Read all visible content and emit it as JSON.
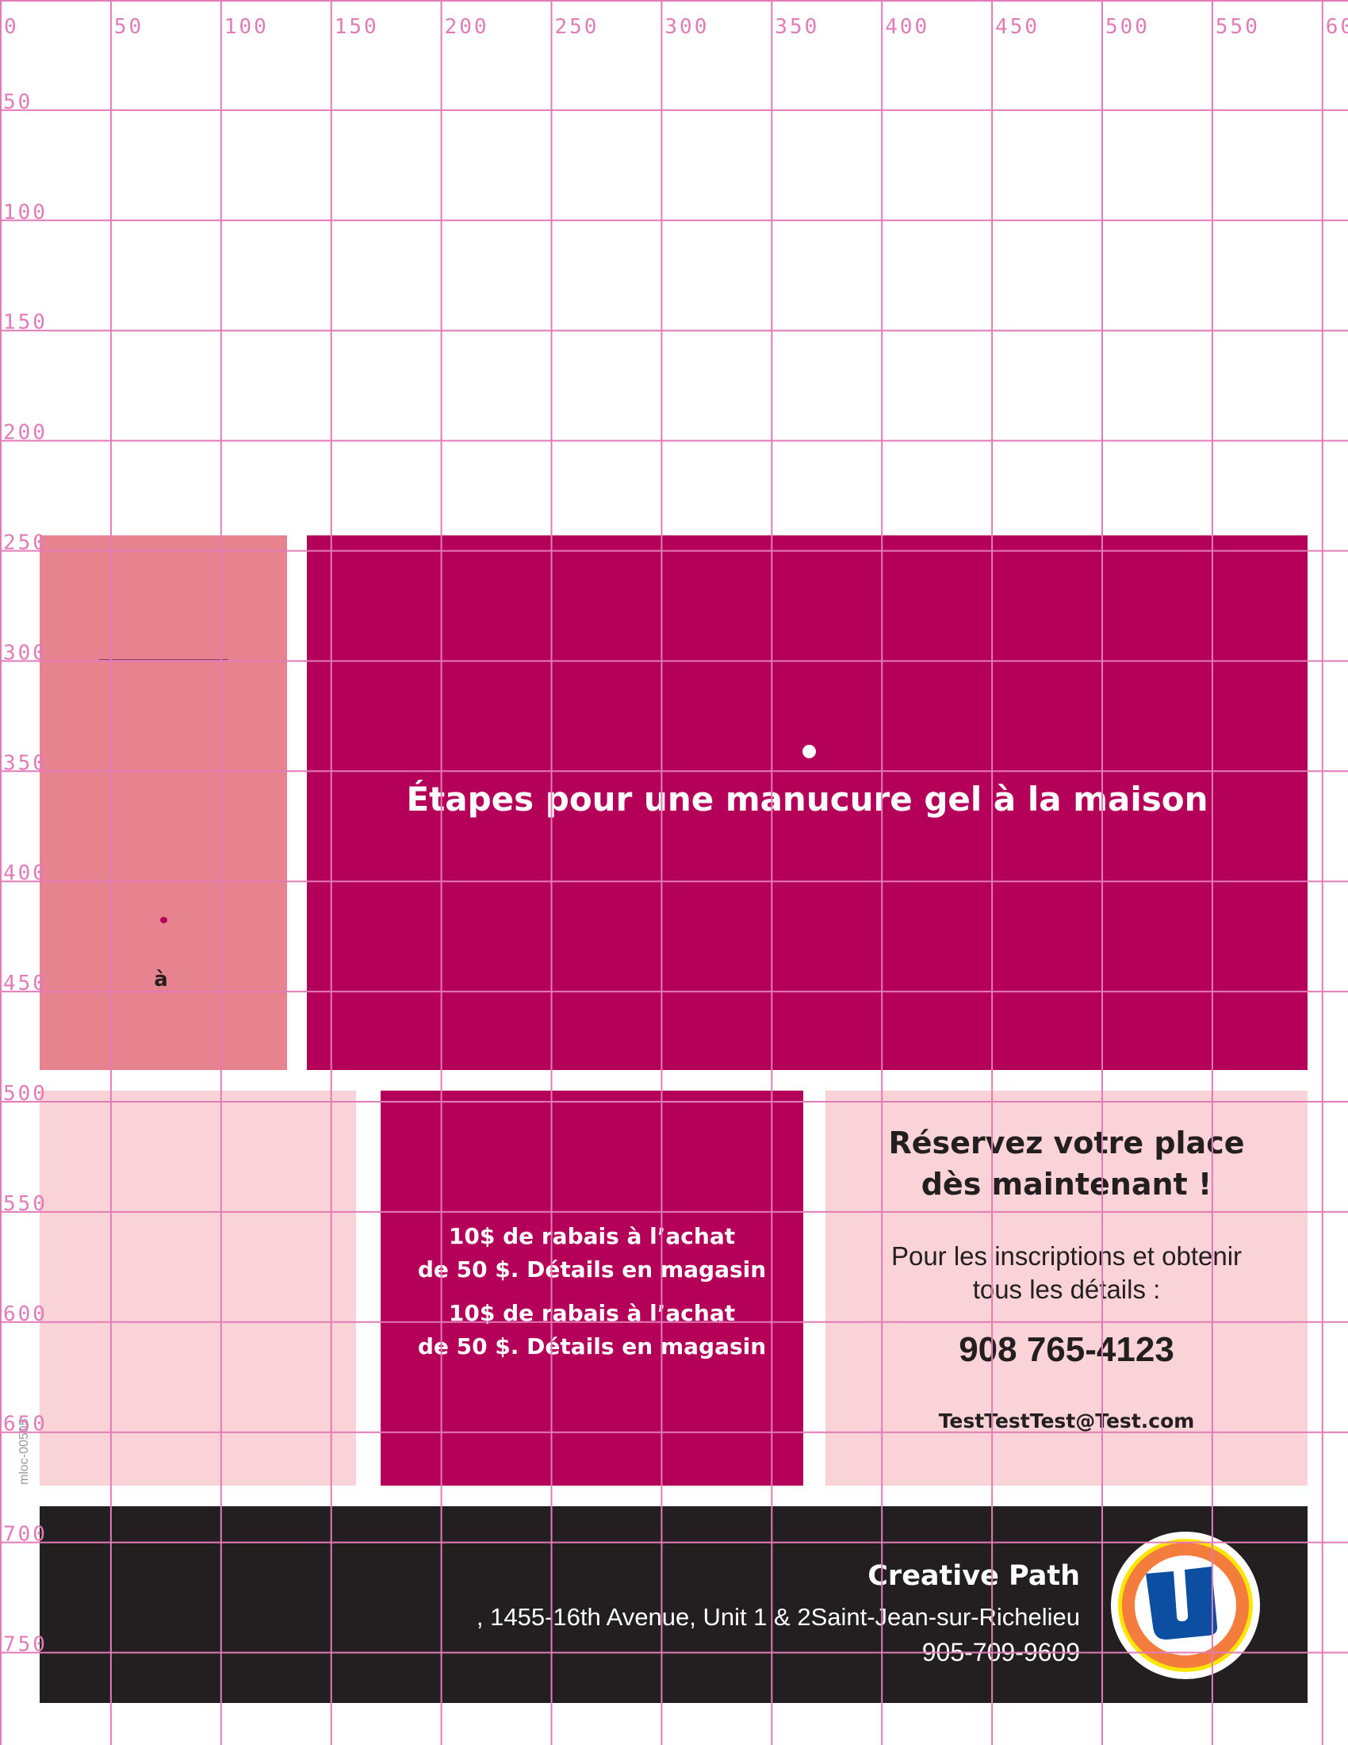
{
  "colors": {
    "magenta": "#b5005a",
    "rose": "#e7838f",
    "light_pink": "#f9d3d7",
    "footer_bg": "#231f20",
    "grid": "#e27bb7"
  },
  "grid": {
    "x_labels": [
      "0",
      "50",
      "100",
      "150",
      "200",
      "250",
      "300",
      "350",
      "400",
      "450",
      "500",
      "550",
      "60"
    ],
    "y_labels": [
      "50",
      "100",
      "150",
      "200",
      "250",
      "300",
      "350",
      "400",
      "450",
      "500",
      "550",
      "600",
      "650",
      "700",
      "750"
    ]
  },
  "side_panel": {
    "accent_char": "à"
  },
  "hero": {
    "title": "Étapes pour une manucure gel à la maison"
  },
  "promo": {
    "lines": [
      "10$ de rabais à l’achat",
      "de 50 $. Détails en magasin",
      "10$ de rabais à l’achat",
      "de 50 $. Détails en magasin"
    ]
  },
  "reserve": {
    "heading_line1": "Réservez votre place",
    "heading_line2": "dès maintenant !",
    "info_line1": "Pour les inscriptions et obtenir",
    "info_line2": "tous les détails :",
    "phone": "908 765-4123",
    "email": "TestTestTest@Test.com"
  },
  "footer": {
    "store_name": "Creative Path",
    "address": ", 1455-16th Avenue, Unit 1 & 2Saint-Jean-sur-Richelieu",
    "phone": "905-709-9609",
    "logo_icon": "uniprix-u-logo",
    "logo_letter": "U"
  },
  "doc_code": "mloc-00505"
}
